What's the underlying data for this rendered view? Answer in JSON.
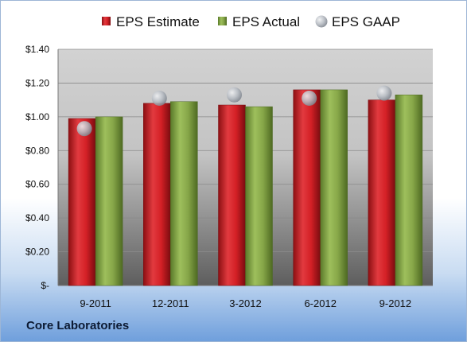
{
  "footer": {
    "company": "Core Laboratories"
  },
  "chart_data": {
    "type": "bar",
    "categories": [
      "9-2011",
      "12-2011",
      "3-2012",
      "6-2012",
      "9-2012"
    ],
    "series": [
      {
        "name": "EPS Estimate",
        "values": [
          0.99,
          1.08,
          1.07,
          1.16,
          1.1
        ],
        "color": "#d42026"
      },
      {
        "name": "EPS Actual",
        "values": [
          1.0,
          1.09,
          1.06,
          1.16,
          1.13
        ],
        "color": "#86a648"
      },
      {
        "name": "EPS GAAP",
        "values": [
          0.93,
          1.11,
          1.13,
          1.11,
          1.14
        ],
        "color": "#b7bcc3",
        "marker": "circle"
      }
    ],
    "ylim": [
      0,
      1.4
    ],
    "yticks": [
      {
        "value": 0,
        "label": "$-"
      },
      {
        "value": 0.2,
        "label": "$0.20"
      },
      {
        "value": 0.4,
        "label": "$0.40"
      },
      {
        "value": 0.6,
        "label": "$0.60"
      },
      {
        "value": 0.8,
        "label": "$0.80"
      },
      {
        "value": 1.0,
        "label": "$1.00"
      },
      {
        "value": 1.2,
        "label": "$1.20"
      },
      {
        "value": 1.4,
        "label": "$1.40"
      }
    ],
    "grid": true,
    "legend": "top"
  }
}
